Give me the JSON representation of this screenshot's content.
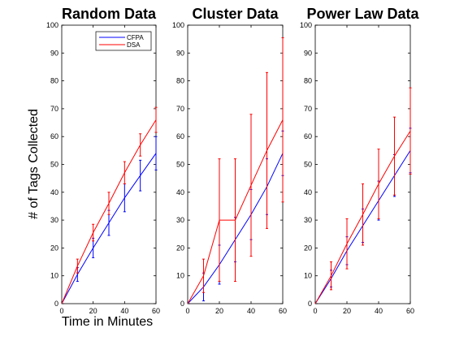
{
  "figure": {
    "ylabel": "# of Tags Collected",
    "xlabel": "Time in Minutes"
  },
  "chart_data": [
    {
      "type": "line",
      "title": "Random Data",
      "xlim": [
        0,
        60
      ],
      "ylim": [
        0,
        100
      ],
      "xticks": [
        0,
        20,
        40,
        60
      ],
      "yticks": [
        0,
        10,
        20,
        30,
        40,
        50,
        60,
        70,
        80,
        90,
        100
      ],
      "legend": {
        "placement": "top-right",
        "entries": [
          "CFPA",
          "DSA"
        ]
      },
      "series": [
        {
          "name": "CFPA",
          "color": "#0000ff",
          "x": [
            0,
            10,
            20,
            30,
            40,
            50,
            60
          ],
          "y": [
            0,
            10.5,
            20,
            29,
            38,
            46,
            54
          ],
          "err": [
            0,
            2.5,
            3.5,
            4.5,
            5,
            5.5,
            6
          ]
        },
        {
          "name": "DSA",
          "color": "#ff0000",
          "x": [
            0,
            10,
            20,
            30,
            40,
            50,
            60
          ],
          "y": [
            0,
            13.5,
            25.5,
            36,
            47,
            57,
            66
          ],
          "err": [
            0,
            2.5,
            3,
            4,
            4,
            4,
            4.5
          ]
        }
      ]
    },
    {
      "type": "line",
      "title": "Cluster Data",
      "xlim": [
        0,
        60
      ],
      "ylim": [
        0,
        100
      ],
      "xticks": [
        0,
        20,
        40,
        60
      ],
      "yticks": [
        0,
        10,
        20,
        30,
        40,
        50,
        60,
        70,
        80,
        90,
        100
      ],
      "series": [
        {
          "name": "CFPA",
          "color": "#0000ff",
          "x": [
            0,
            10,
            20,
            30,
            40,
            50,
            60
          ],
          "y": [
            0,
            6,
            14,
            23,
            32,
            42,
            54
          ],
          "err": [
            0,
            5,
            7,
            8,
            9,
            10,
            8
          ]
        },
        {
          "name": "DSA",
          "color": "#ff0000",
          "x": [
            0,
            10,
            20,
            30,
            40,
            50,
            60
          ],
          "y": [
            0,
            10,
            30,
            30,
            42.5,
            55,
            66
          ],
          "err": [
            0,
            6,
            22,
            22,
            25.5,
            28,
            29.5
          ]
        }
      ]
    },
    {
      "type": "line",
      "title": "Power Law Data",
      "xlim": [
        0,
        60
      ],
      "ylim": [
        0,
        100
      ],
      "xticks": [
        0,
        20,
        40,
        60
      ],
      "yticks": [
        0,
        10,
        20,
        30,
        40,
        50,
        60,
        70,
        80,
        90,
        100
      ],
      "series": [
        {
          "name": "CFPA",
          "color": "#0000ff",
          "x": [
            0,
            10,
            20,
            30,
            40,
            50,
            60
          ],
          "y": [
            0,
            9,
            19,
            28,
            37,
            46,
            55
          ],
          "err": [
            0,
            3,
            5,
            6,
            7,
            7.5,
            8
          ]
        },
        {
          "name": "DSA",
          "color": "#ff0000",
          "x": [
            0,
            10,
            20,
            30,
            40,
            50,
            60
          ],
          "y": [
            0,
            10,
            21.5,
            32,
            43,
            53,
            62
          ],
          "err": [
            0,
            5,
            9,
            11,
            12.5,
            14,
            15.5
          ]
        }
      ]
    }
  ]
}
